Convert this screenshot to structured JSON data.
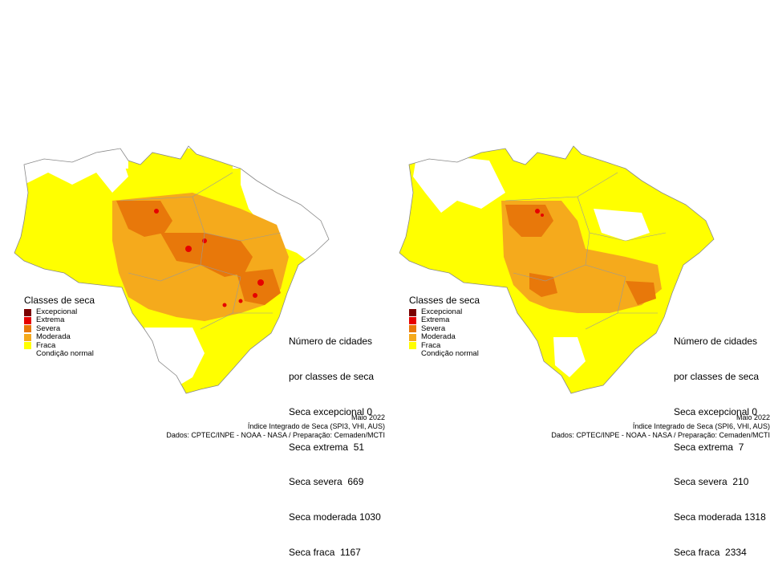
{
  "colors": {
    "excepcional": "#7a0000",
    "extrema": "#e60000",
    "severa": "#e8780a",
    "moderada": "#f5aa1c",
    "fraca": "#ffff00",
    "normal": "#ffffff",
    "border": "#888888"
  },
  "maps": [
    {
      "legend": {
        "title": "Classes de seca",
        "items": [
          "Excepcional",
          "Extrema",
          "Severa",
          "Moderada",
          "Fraca",
          "Condição normal"
        ]
      },
      "counts": {
        "heading1": "Número de cidades",
        "heading2": "por classes de seca",
        "lines": [
          {
            "label": "Seca excepcional",
            "value": "0"
          },
          {
            "label": "Seca extrema",
            "value": "51"
          },
          {
            "label": "Seca severa",
            "value": "669"
          },
          {
            "label": "Seca moderada",
            "value": "1030"
          },
          {
            "label": "Seca fraca",
            "value": "1167"
          }
        ]
      },
      "footer": {
        "date": "Maio 2022",
        "index": "Índice Integrado de Seca (SPI3, VHI, AUS)",
        "credits": "Dados: CPTEC/INPE - NOAA - NASA / Preparação: Cemaden/MCTI"
      }
    },
    {
      "legend": {
        "title": "Classes de seca",
        "items": [
          "Excepcional",
          "Extrema",
          "Severa",
          "Moderada",
          "Fraca",
          "Condição normal"
        ]
      },
      "counts": {
        "heading1": "Número de cidades",
        "heading2": "por classes de seca",
        "lines": [
          {
            "label": "Seca excepcional",
            "value": "0"
          },
          {
            "label": "Seca extrema",
            "value": "7"
          },
          {
            "label": "Seca severa",
            "value": "210"
          },
          {
            "label": "Seca moderada",
            "value": "1318"
          },
          {
            "label": "Seca fraca",
            "value": "2334"
          }
        ]
      },
      "footer": {
        "date": "Maio 2022",
        "index": "Índice Integrado de Seca (SPI6, VHI, AUS)",
        "credits": "Dados: CPTEC/INPE - NOAA - NASA / Preparação: Cemaden/MCTI"
      }
    }
  ]
}
